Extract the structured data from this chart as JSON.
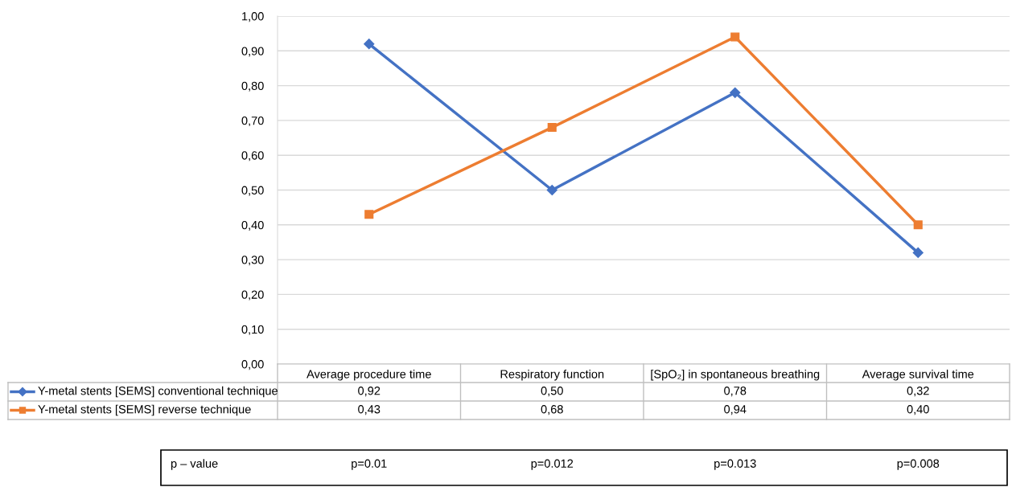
{
  "chart_data": {
    "type": "line",
    "categories": [
      "Average procedure time",
      "Respiratory function",
      "[SpO₂] in spontaneous breathing",
      "Average survival time"
    ],
    "series": [
      {
        "name": "Y-metal stents [SEMS] conventional technique",
        "color": "#4472c4",
        "marker": "diamond",
        "values": [
          0.92,
          0.5,
          0.78,
          0.32
        ],
        "value_labels": [
          "0,92",
          "0,50",
          "0,78",
          "0,32"
        ]
      },
      {
        "name": "Y-metal stents [SEMS] reverse technique",
        "color": "#ed7d31",
        "marker": "square",
        "values": [
          0.43,
          0.68,
          0.94,
          0.4
        ],
        "value_labels": [
          "0,43",
          "0,68",
          "0,94",
          "0,40"
        ]
      }
    ],
    "ylim": [
      0,
      1
    ],
    "yticks": [
      {
        "value": 0,
        "label": "0,00"
      },
      {
        "value": 0.1,
        "label": "0,10"
      },
      {
        "value": 0.2,
        "label": "0,20"
      },
      {
        "value": 0.3,
        "label": "0,30"
      },
      {
        "value": 0.4,
        "label": "0,40"
      },
      {
        "value": 0.5,
        "label": "0,50"
      },
      {
        "value": 0.6,
        "label": "0,60"
      },
      {
        "value": 0.7,
        "label": "0,70"
      },
      {
        "value": 0.8,
        "label": "0,80"
      },
      {
        "value": 0.9,
        "label": "0,90"
      },
      {
        "value": 1.0,
        "label": "1,00"
      }
    ],
    "grid": "y",
    "legend": "bottom left",
    "line_style": "solid",
    "annotations": [
      "p – value",
      "p=0.01",
      "p=0.012",
      "p=0.013",
      "p=0.008"
    ]
  }
}
